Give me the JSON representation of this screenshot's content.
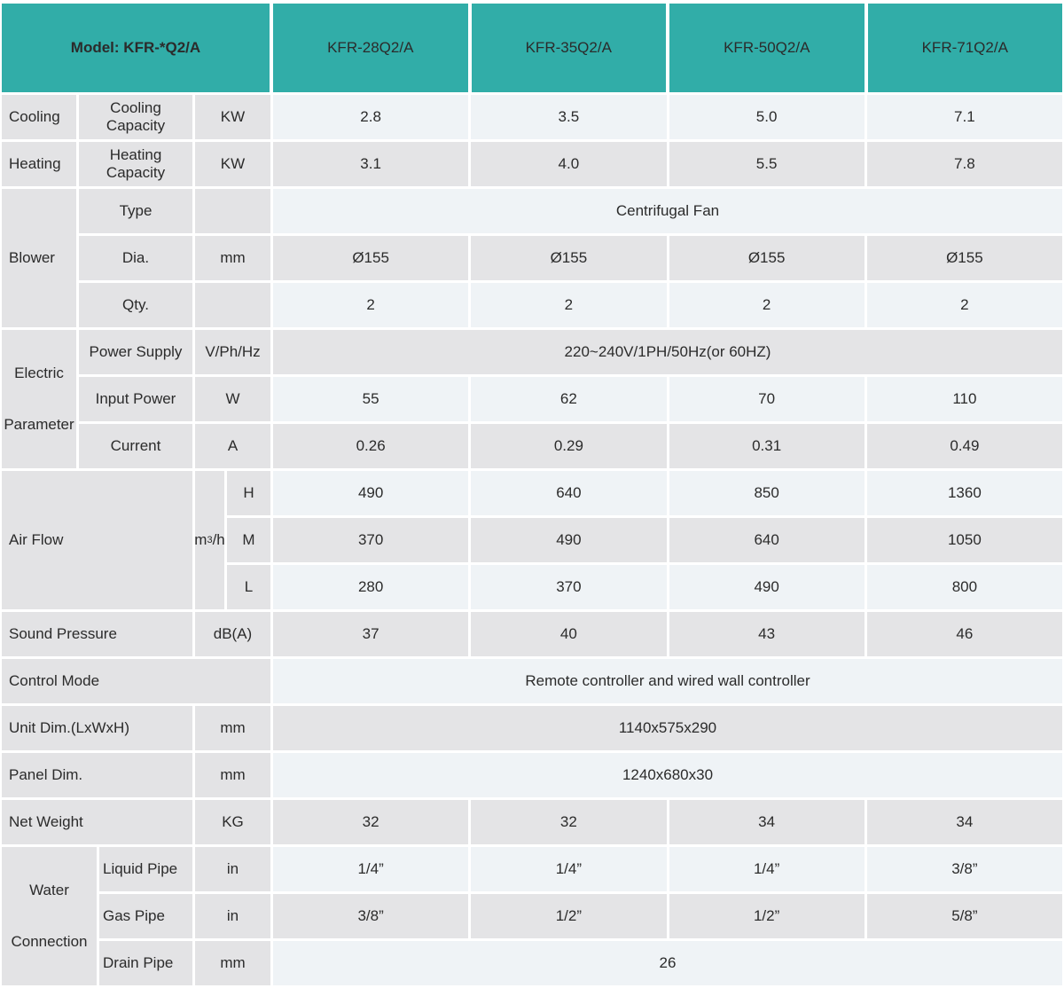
{
  "colors": {
    "teal": "#31ada8",
    "row_light": "#eff3f6",
    "row_gray": "#e4e4e6",
    "label_gray": "#e3e3e5",
    "text": "#2b2b2b"
  },
  "header": {
    "model_label": "Model: KFR-*Q2/A",
    "columns": [
      "KFR-28Q2/A",
      "KFR-35Q2/A",
      "KFR-50Q2/A",
      "KFR-71Q2/A"
    ]
  },
  "rows": {
    "cooling": {
      "category": "Cooling",
      "label": "Cooling Capacity",
      "unit": "KW",
      "values": [
        "2.8",
        "3.5",
        "5.0",
        "7.1"
      ]
    },
    "heating": {
      "category": "Heating",
      "label": "Heating Capacity",
      "unit": "KW",
      "values": [
        "3.1",
        "4.0",
        "5.5",
        "7.8"
      ]
    },
    "blower": {
      "category": "Blower",
      "type": {
        "label": "Type",
        "unit": "",
        "value": "Centrifugal Fan"
      },
      "dia": {
        "label": "Dia.",
        "unit": "mm",
        "values": [
          "Ø155",
          "Ø155",
          "Ø155",
          "Ø155"
        ]
      },
      "qty": {
        "label": "Qty.",
        "unit": "",
        "values": [
          "2",
          "2",
          "2",
          "2"
        ]
      }
    },
    "electric": {
      "category_line1": "Electric",
      "category_line2": "Parameter",
      "power_supply": {
        "label": "Power Supply",
        "unit": "V/Ph/Hz",
        "value": "220~240V/1PH/50Hz(or 60HZ)"
      },
      "input_power": {
        "label": "Input Power",
        "unit": "W",
        "values": [
          "55",
          "62",
          "70",
          "110"
        ]
      },
      "current": {
        "label": "Current",
        "unit": "A",
        "values": [
          "0.26",
          "0.29",
          "0.31",
          "0.49"
        ]
      }
    },
    "air_flow": {
      "category": "Air Flow",
      "unit_base": "m",
      "unit_sup": "3",
      "unit_rest": "/h",
      "h": {
        "label": "H",
        "values": [
          "490",
          "640",
          "850",
          "1360"
        ]
      },
      "m": {
        "label": "M",
        "values": [
          "370",
          "490",
          "640",
          "1050"
        ]
      },
      "l": {
        "label": "L",
        "values": [
          "280",
          "370",
          "490",
          "800"
        ]
      }
    },
    "sound": {
      "category": "Sound Pressure",
      "unit": "dB(A)",
      "values": [
        "37",
        "40",
        "43",
        "46"
      ]
    },
    "control": {
      "category": "Control Mode",
      "value": "Remote controller and wired wall controller"
    },
    "unit_dim": {
      "category": "Unit Dim.(LxWxH)",
      "unit": "mm",
      "value": "1140x575x290"
    },
    "panel_dim": {
      "category": "Panel Dim.",
      "unit": "mm",
      "value": "1240x680x30"
    },
    "net_weight": {
      "category": "Net Weight",
      "unit": "KG",
      "values": [
        "32",
        "32",
        "34",
        "34"
      ]
    },
    "water": {
      "category_line1": "Water",
      "category_line2": "Connection",
      "liquid": {
        "label": "Liquid Pipe",
        "unit": "in",
        "values": [
          "1/4”",
          "1/4”",
          "1/4”",
          "3/8”"
        ]
      },
      "gas": {
        "label": "Gas Pipe",
        "unit": "in",
        "values": [
          "3/8”",
          "1/2”",
          "1/2”",
          "5/8”"
        ]
      },
      "drain": {
        "label": "Drain Pipe",
        "unit": "mm",
        "value": "26"
      }
    }
  }
}
